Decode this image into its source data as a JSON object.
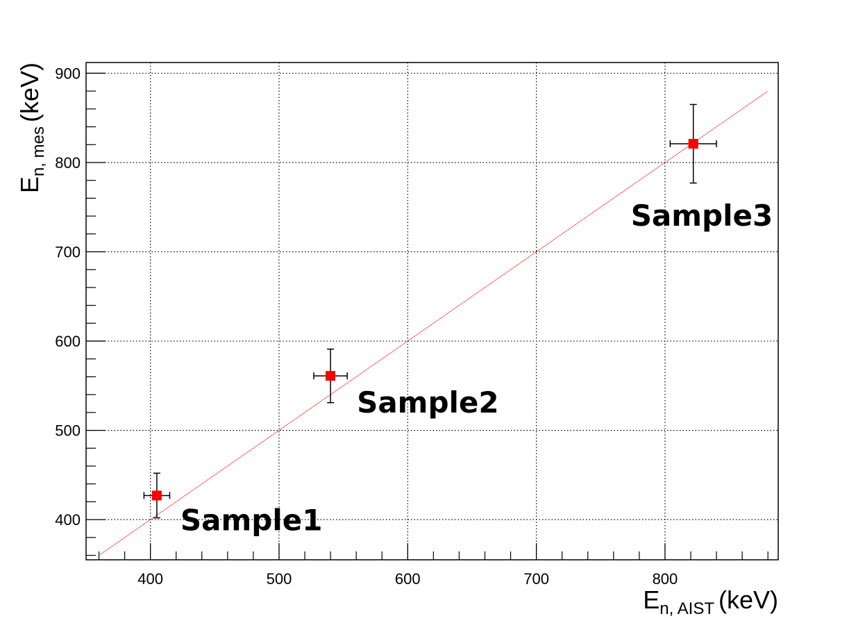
{
  "chart_data": {
    "type": "scatter",
    "xlabel": {
      "main": "E",
      "sub": "n, AIST",
      "unit": "(keV)"
    },
    "ylabel": {
      "main": "E",
      "sub": "n, mes",
      "unit": "(keV)"
    },
    "xlim": [
      350,
      888
    ],
    "ylim": [
      355,
      912
    ],
    "x_ticks": [
      400,
      500,
      600,
      700,
      800
    ],
    "y_ticks": [
      400,
      500,
      600,
      700,
      800,
      900
    ],
    "grid": true,
    "points": [
      {
        "label": "Sample1",
        "x": 405,
        "y": 427,
        "x_err": 10,
        "y_err": 25
      },
      {
        "label": "Sample2",
        "x": 540,
        "y": 561,
        "x_err": 13,
        "y_err": 30
      },
      {
        "label": "Sample3",
        "x": 822,
        "y": 821,
        "x_err": 18,
        "y_err": 44
      }
    ],
    "fit_line": {
      "x_start": 361,
      "x_end": 880,
      "slope": 1.0,
      "intercept": 0,
      "color": "#ff0000"
    },
    "marker_color": "#ff0000",
    "error_bar_color": "#000000"
  }
}
